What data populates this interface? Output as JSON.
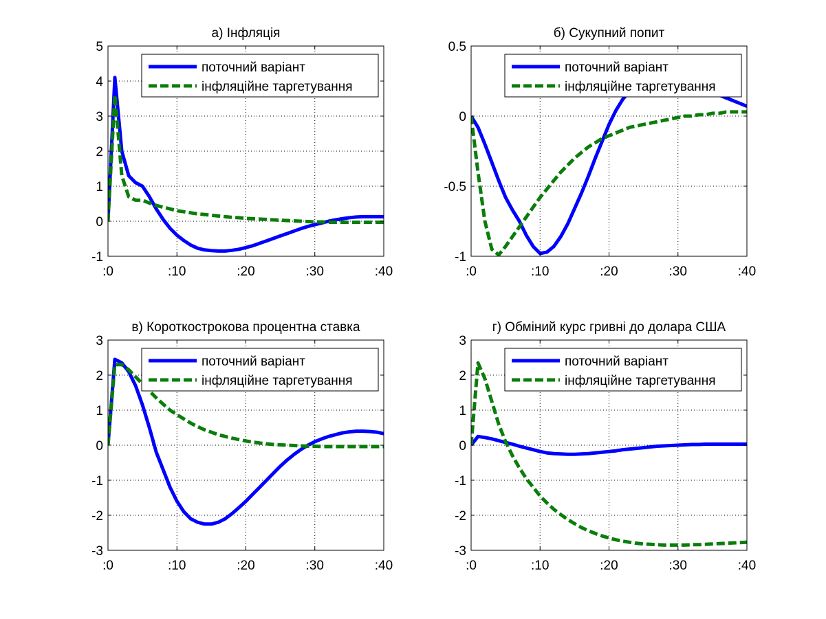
{
  "chart_data": [
    {
      "type": "line",
      "title": "а) Інфляція",
      "xlim": [
        0,
        40
      ],
      "ylim": [
        -1,
        5
      ],
      "x_ticks": [
        0,
        10,
        20,
        30,
        40
      ],
      "x_tick_labels": [
        ":0",
        ":10",
        ":20",
        ":30",
        ":40"
      ],
      "y_ticks": [
        -1,
        0,
        1,
        2,
        3,
        4,
        5
      ],
      "y_tick_labels": [
        "-1",
        "0",
        "1",
        "2",
        "3",
        "4",
        "5"
      ],
      "grid": true,
      "legend_position": "top-right",
      "series": [
        {
          "name": "поточний варіант",
          "color": "#0000ff",
          "style": "solid",
          "x": [
            0,
            1,
            2,
            3,
            4,
            5,
            6,
            7,
            8,
            9,
            10,
            11,
            12,
            13,
            14,
            15,
            16,
            17,
            18,
            19,
            20,
            21,
            22,
            23,
            24,
            25,
            26,
            27,
            28,
            29,
            30,
            31,
            32,
            33,
            34,
            35,
            36,
            37,
            38,
            39,
            40
          ],
          "y": [
            0,
            4.1,
            2.0,
            1.3,
            1.1,
            1.0,
            0.7,
            0.35,
            0.05,
            -0.2,
            -0.4,
            -0.55,
            -0.68,
            -0.77,
            -0.82,
            -0.84,
            -0.85,
            -0.85,
            -0.83,
            -0.8,
            -0.75,
            -0.7,
            -0.63,
            -0.56,
            -0.49,
            -0.42,
            -0.35,
            -0.28,
            -0.21,
            -0.15,
            -0.1,
            -0.05,
            0.0,
            0.04,
            0.07,
            0.1,
            0.12,
            0.13,
            0.13,
            0.13,
            0.13
          ]
        },
        {
          "name": "інфляційне таргетування",
          "color": "#0a7d0a",
          "style": "dashed",
          "x": [
            0,
            1,
            2,
            3,
            4,
            5,
            6,
            7,
            8,
            9,
            10,
            11,
            12,
            13,
            14,
            15,
            16,
            17,
            18,
            19,
            20,
            21,
            22,
            23,
            24,
            25,
            26,
            27,
            28,
            29,
            30,
            31,
            32,
            33,
            34,
            35,
            36,
            37,
            38,
            39,
            40
          ],
          "y": [
            0,
            3.6,
            1.3,
            0.7,
            0.6,
            0.6,
            0.52,
            0.45,
            0.4,
            0.35,
            0.3,
            0.27,
            0.24,
            0.21,
            0.19,
            0.17,
            0.15,
            0.13,
            0.11,
            0.1,
            0.08,
            0.07,
            0.06,
            0.05,
            0.04,
            0.03,
            0.02,
            0.01,
            0.0,
            -0.01,
            -0.02,
            -0.02,
            -0.03,
            -0.03,
            -0.03,
            -0.03,
            -0.03,
            -0.03,
            -0.03,
            -0.03,
            -0.03
          ]
        }
      ]
    },
    {
      "type": "line",
      "title": "б) Сукупний попит",
      "xlim": [
        0,
        40
      ],
      "ylim": [
        -1,
        0.5
      ],
      "x_ticks": [
        0,
        10,
        20,
        30,
        40
      ],
      "x_tick_labels": [
        ":0",
        ":10",
        ":20",
        ":30",
        ":40"
      ],
      "y_ticks": [
        -1,
        -0.5,
        0,
        0.5
      ],
      "y_tick_labels": [
        "-1",
        "-0.5",
        "0",
        "0.5"
      ],
      "grid": true,
      "legend_position": "top-right",
      "series": [
        {
          "name": "поточний варіант",
          "color": "#0000ff",
          "style": "solid",
          "x": [
            0,
            1,
            2,
            3,
            4,
            5,
            6,
            7,
            8,
            9,
            10,
            11,
            12,
            13,
            14,
            15,
            16,
            17,
            18,
            19,
            20,
            21,
            22,
            23,
            24,
            25,
            26,
            27,
            28,
            29,
            30,
            31,
            32,
            33,
            34,
            35,
            36,
            37,
            38,
            39,
            40
          ],
          "y": [
            0,
            -0.08,
            -0.2,
            -0.33,
            -0.46,
            -0.58,
            -0.67,
            -0.75,
            -0.85,
            -0.93,
            -0.98,
            -0.97,
            -0.93,
            -0.86,
            -0.77,
            -0.66,
            -0.55,
            -0.43,
            -0.3,
            -0.18,
            -0.06,
            0.04,
            0.12,
            0.18,
            0.23,
            0.26,
            0.28,
            0.29,
            0.29,
            0.28,
            0.27,
            0.25,
            0.23,
            0.21,
            0.19,
            0.17,
            0.15,
            0.13,
            0.11,
            0.09,
            0.07
          ]
        },
        {
          "name": "інфляційне таргетування",
          "color": "#0a7d0a",
          "style": "dashed",
          "x": [
            0,
            1,
            2,
            3,
            4,
            5,
            6,
            7,
            8,
            9,
            10,
            11,
            12,
            13,
            14,
            15,
            16,
            17,
            18,
            19,
            20,
            21,
            22,
            23,
            24,
            25,
            26,
            27,
            28,
            29,
            30,
            31,
            32,
            33,
            34,
            35,
            36,
            37,
            38,
            39,
            40
          ],
          "y": [
            0,
            -0.4,
            -0.75,
            -0.95,
            -0.99,
            -0.93,
            -0.86,
            -0.79,
            -0.72,
            -0.65,
            -0.58,
            -0.52,
            -0.46,
            -0.4,
            -0.35,
            -0.3,
            -0.26,
            -0.22,
            -0.19,
            -0.16,
            -0.14,
            -0.12,
            -0.1,
            -0.08,
            -0.07,
            -0.06,
            -0.05,
            -0.04,
            -0.03,
            -0.02,
            -0.01,
            0.0,
            0.0,
            0.01,
            0.01,
            0.02,
            0.02,
            0.03,
            0.03,
            0.03,
            0.03
          ]
        }
      ]
    },
    {
      "type": "line",
      "title": "в) Короткострокова процентна ставка",
      "xlim": [
        0,
        40
      ],
      "ylim": [
        -3,
        3
      ],
      "x_ticks": [
        0,
        10,
        20,
        30,
        40
      ],
      "x_tick_labels": [
        ":0",
        ":10",
        ":20",
        ":30",
        ":40"
      ],
      "y_ticks": [
        -3,
        -2,
        -1,
        0,
        1,
        2,
        3
      ],
      "y_tick_labels": [
        "-3",
        "-2",
        "-1",
        "0",
        "1",
        "2",
        "3"
      ],
      "grid": true,
      "legend_position": "top-right",
      "series": [
        {
          "name": "поточний варіант",
          "color": "#0000ff",
          "style": "solid",
          "x": [
            0,
            1,
            2,
            3,
            4,
            5,
            6,
            7,
            8,
            9,
            10,
            11,
            12,
            13,
            14,
            15,
            16,
            17,
            18,
            19,
            20,
            21,
            22,
            23,
            24,
            25,
            26,
            27,
            28,
            29,
            30,
            31,
            32,
            33,
            34,
            35,
            36,
            37,
            38,
            39,
            40
          ],
          "y": [
            0,
            2.45,
            2.35,
            2.1,
            1.7,
            1.15,
            0.5,
            -0.2,
            -0.7,
            -1.2,
            -1.6,
            -1.9,
            -2.1,
            -2.2,
            -2.25,
            -2.25,
            -2.2,
            -2.1,
            -1.95,
            -1.78,
            -1.6,
            -1.4,
            -1.2,
            -1.0,
            -0.8,
            -0.6,
            -0.42,
            -0.26,
            -0.12,
            0.0,
            0.1,
            0.18,
            0.25,
            0.3,
            0.35,
            0.38,
            0.4,
            0.4,
            0.39,
            0.37,
            0.33
          ]
        },
        {
          "name": "інфляційне таргетування",
          "color": "#0a7d0a",
          "style": "dashed",
          "x": [
            0,
            1,
            2,
            3,
            4,
            5,
            6,
            7,
            8,
            9,
            10,
            11,
            12,
            13,
            14,
            15,
            16,
            17,
            18,
            19,
            20,
            21,
            22,
            23,
            24,
            25,
            26,
            27,
            28,
            29,
            30,
            31,
            32,
            33,
            34,
            35,
            36,
            37,
            38,
            39,
            40
          ],
          "y": [
            0,
            2.3,
            2.3,
            2.15,
            1.95,
            1.75,
            1.55,
            1.35,
            1.17,
            1.0,
            0.87,
            0.75,
            0.63,
            0.53,
            0.44,
            0.37,
            0.3,
            0.25,
            0.2,
            0.16,
            0.12,
            0.09,
            0.06,
            0.04,
            0.02,
            0.01,
            0.0,
            -0.01,
            -0.02,
            -0.03,
            -0.03,
            -0.04,
            -0.04,
            -0.04,
            -0.04,
            -0.04,
            -0.04,
            -0.04,
            -0.04,
            -0.04,
            -0.04
          ]
        }
      ]
    },
    {
      "type": "line",
      "title": "г) Обміний курс гривні до долара США",
      "xlim": [
        0,
        40
      ],
      "ylim": [
        -3,
        3
      ],
      "x_ticks": [
        0,
        10,
        20,
        30,
        40
      ],
      "x_tick_labels": [
        ":0",
        ":10",
        ":20",
        ":30",
        ":40"
      ],
      "y_ticks": [
        -3,
        -2,
        -1,
        0,
        1,
        2,
        3
      ],
      "y_tick_labels": [
        "-3",
        "-2",
        "-1",
        "0",
        "1",
        "2",
        "3"
      ],
      "grid": true,
      "legend_position": "top-right",
      "series": [
        {
          "name": "поточний варіант",
          "color": "#0000ff",
          "style": "solid",
          "x": [
            0,
            1,
            2,
            3,
            4,
            5,
            6,
            7,
            8,
            9,
            10,
            11,
            12,
            13,
            14,
            15,
            16,
            17,
            18,
            19,
            20,
            21,
            22,
            23,
            24,
            25,
            26,
            27,
            28,
            29,
            30,
            31,
            32,
            33,
            34,
            35,
            36,
            37,
            38,
            39,
            40
          ],
          "y": [
            0,
            0.25,
            0.22,
            0.18,
            0.13,
            0.08,
            0.03,
            -0.03,
            -0.08,
            -0.13,
            -0.18,
            -0.22,
            -0.24,
            -0.25,
            -0.26,
            -0.26,
            -0.25,
            -0.24,
            -0.22,
            -0.2,
            -0.18,
            -0.16,
            -0.13,
            -0.11,
            -0.09,
            -0.07,
            -0.05,
            -0.03,
            -0.02,
            -0.01,
            0.0,
            0.01,
            0.02,
            0.02,
            0.03,
            0.03,
            0.03,
            0.03,
            0.03,
            0.03,
            0.03
          ]
        },
        {
          "name": "інфляційне таргетування",
          "color": "#0a7d0a",
          "style": "dashed",
          "x": [
            0,
            1,
            2,
            3,
            4,
            5,
            6,
            7,
            8,
            9,
            10,
            11,
            12,
            13,
            14,
            15,
            16,
            17,
            18,
            19,
            20,
            21,
            22,
            23,
            24,
            25,
            26,
            27,
            28,
            29,
            30,
            31,
            32,
            33,
            34,
            35,
            36,
            37,
            38,
            39,
            40
          ],
          "y": [
            0,
            2.35,
            1.9,
            1.25,
            0.6,
            0.1,
            -0.3,
            -0.65,
            -0.95,
            -1.2,
            -1.45,
            -1.65,
            -1.83,
            -1.98,
            -2.12,
            -2.24,
            -2.35,
            -2.44,
            -2.52,
            -2.59,
            -2.65,
            -2.7,
            -2.74,
            -2.77,
            -2.8,
            -2.82,
            -2.83,
            -2.84,
            -2.85,
            -2.85,
            -2.85,
            -2.85,
            -2.84,
            -2.84,
            -2.83,
            -2.82,
            -2.81,
            -2.8,
            -2.79,
            -2.78,
            -2.77
          ]
        }
      ]
    }
  ]
}
